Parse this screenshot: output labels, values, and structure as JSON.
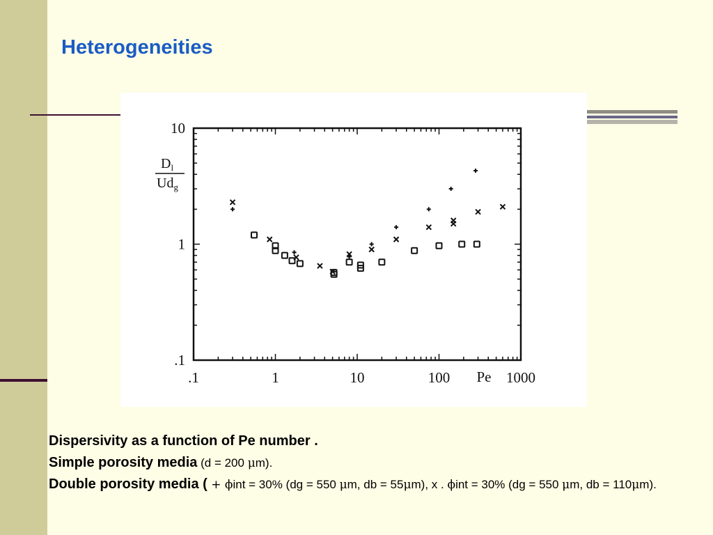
{
  "slide": {
    "title": "Heterogeneities",
    "colors": {
      "title": "#1a5cc4",
      "background": "#fefde6",
      "sidebar": "#cfcc9a",
      "rule": "#3d1030"
    }
  },
  "chart_data": {
    "type": "scatter",
    "x_scale": "log",
    "y_scale": "log",
    "xlim": [
      0.1,
      1000
    ],
    "ylim": [
      0.1,
      10
    ],
    "xlabel": "Pe",
    "ylabel_numerator": "D",
    "ylabel_numerator_subscript": "l",
    "ylabel_denominator": "Ud",
    "ylabel_denominator_subscript": "g",
    "x_tick_labels": [
      ".1",
      "1",
      "10",
      "100",
      "1000"
    ],
    "y_tick_labels": [
      "10",
      "1",
      ".1"
    ],
    "grid": false,
    "series": [
      {
        "marker": "square",
        "x": [
          0.55,
          1.0,
          1.0,
          1.3,
          1.6,
          2.0,
          5.2,
          5.2,
          8.0,
          11.0,
          11.0,
          20.0,
          50.0,
          100.0,
          190.0,
          290.0
        ],
        "y": [
          1.2,
          0.97,
          0.88,
          0.8,
          0.72,
          0.68,
          0.57,
          0.55,
          0.7,
          0.66,
          0.62,
          0.7,
          0.88,
          0.97,
          1.0,
          1.0
        ]
      },
      {
        "marker": "plus",
        "x": [
          0.3,
          1.7,
          8.0,
          15.0,
          30.0,
          75.0,
          140.0,
          280.0
        ],
        "y": [
          2.0,
          0.85,
          0.78,
          1.0,
          1.4,
          2.0,
          3.0,
          4.3
        ]
      },
      {
        "marker": "cross",
        "x": [
          0.3,
          0.85,
          1.8,
          3.5,
          5.0,
          8.0,
          15.0,
          30.0,
          75.0,
          150.0,
          150.0,
          300.0,
          600.0
        ],
        "y": [
          2.3,
          1.1,
          0.77,
          0.65,
          0.58,
          0.82,
          0.9,
          1.1,
          1.4,
          1.5,
          1.6,
          1.9,
          2.1
        ]
      }
    ]
  },
  "caption": {
    "line1": "Dispersivity as a function of Pe number .",
    "line2_bold": "Simple porosity media",
    "line2_rest": " (d = 200 ",
    "line2_mu": "μ",
    "line2_end": "m).",
    "line3_bold": "Double porosity media (",
    "line3_plus": " + ",
    "line3_phi1": "ϕ",
    "line3_a": "int = 30% (dg = 550 ",
    "line3_mu1": "μ",
    "line3_b": "m, db = 55",
    "line3_mu2": "μ",
    "line3_c": "m), x . ",
    "line3_phi2": "ϕ",
    "line3_d": "int = 30% (dg = 550 ",
    "line3_mu3": "μ",
    "line3_e": "m, db = 110",
    "line3_mu4": "μ",
    "line3_f": "m)."
  }
}
